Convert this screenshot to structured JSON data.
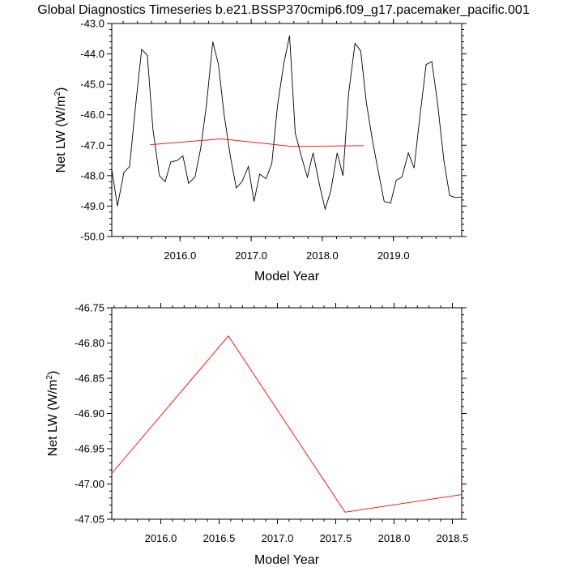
{
  "title": "Global Diagnostics Timeseries b.e21.BSSP370cmip6.f09_g17.pacemaker_pacific.001",
  "chart_data": [
    {
      "type": "line",
      "xlabel": "Model Year",
      "ylabel": "Net LW (W/m",
      "ylabel_sup": "2",
      "ylabel_tail": ")",
      "xlim": [
        2015.04,
        2019.96
      ],
      "ylim": [
        -50.0,
        -43.0
      ],
      "x_ticks": [
        2016.0,
        2017.0,
        2018.0,
        2019.0
      ],
      "x_tick_labels": [
        "2016.0",
        "2017.0",
        "2018.0",
        "2019.0"
      ],
      "y_ticks": [
        -50.0,
        -49.0,
        -48.0,
        -47.0,
        -46.0,
        -45.0,
        -44.0,
        -43.0
      ],
      "y_tick_labels": [
        "-50.0",
        "-49.0",
        "-48.0",
        "-47.0",
        "-46.0",
        "-45.0",
        "-44.0",
        "-43.0"
      ],
      "series": [
        {
          "color": "#000000",
          "x": [
            2015.04,
            2015.12,
            2015.21,
            2015.29,
            2015.37,
            2015.46,
            2015.54,
            2015.62,
            2015.71,
            2015.79,
            2015.87,
            2015.96,
            2016.04,
            2016.12,
            2016.21,
            2016.29,
            2016.37,
            2016.46,
            2016.54,
            2016.62,
            2016.71,
            2016.79,
            2016.87,
            2016.96,
            2017.04,
            2017.12,
            2017.21,
            2017.29,
            2017.37,
            2017.46,
            2017.54,
            2017.62,
            2017.71,
            2017.79,
            2017.87,
            2017.96,
            2018.04,
            2018.12,
            2018.21,
            2018.29,
            2018.37,
            2018.46,
            2018.54,
            2018.62,
            2018.71,
            2018.79,
            2018.87,
            2018.96,
            2019.04,
            2019.12,
            2019.21,
            2019.29,
            2019.37,
            2019.46,
            2019.54,
            2019.62,
            2019.71,
            2019.79,
            2019.87,
            2019.96
          ],
          "values": [
            -47.8,
            -49.0,
            -47.9,
            -47.7,
            -45.8,
            -43.85,
            -44.05,
            -46.5,
            -48.0,
            -48.2,
            -47.55,
            -47.5,
            -47.35,
            -48.25,
            -48.05,
            -47.1,
            -45.7,
            -43.6,
            -44.35,
            -46.0,
            -47.4,
            -48.4,
            -48.2,
            -47.7,
            -48.85,
            -47.95,
            -48.1,
            -47.6,
            -45.7,
            -44.3,
            -43.4,
            -46.6,
            -47.4,
            -48.05,
            -47.25,
            -48.3,
            -49.1,
            -48.5,
            -47.25,
            -48.0,
            -45.3,
            -43.65,
            -43.9,
            -45.6,
            -46.9,
            -47.9,
            -48.85,
            -48.9,
            -48.15,
            -48.05,
            -47.25,
            -47.75,
            -46.1,
            -44.35,
            -44.25,
            -45.6,
            -47.5,
            -48.65,
            -48.72,
            -48.7
          ]
        },
        {
          "color": "#ff0000",
          "x": [
            2015.58,
            2016.58,
            2017.58,
            2018.58
          ],
          "values": [
            -46.985,
            -46.79,
            -47.04,
            -47.015
          ]
        }
      ]
    },
    {
      "type": "line",
      "xlabel": "Model Year",
      "ylabel": "Net LW (W/m",
      "ylabel_sup": "2",
      "ylabel_tail": ")",
      "xlim": [
        2015.58,
        2018.58
      ],
      "ylim": [
        -47.05,
        -46.75
      ],
      "x_ticks": [
        2016.0,
        2016.5,
        2017.0,
        2017.5,
        2018.0,
        2018.5
      ],
      "x_tick_labels": [
        "2016.0",
        "2016.5",
        "2017.0",
        "2017.5",
        "2018.0",
        "2018.5"
      ],
      "y_ticks": [
        -47.05,
        -47.0,
        -46.95,
        -46.9,
        -46.85,
        -46.8,
        -46.75
      ],
      "y_tick_labels": [
        "-47.05",
        "-47.00",
        "-46.95",
        "-46.90",
        "-46.85",
        "-46.80",
        "-46.75"
      ],
      "series": [
        {
          "color": "#ff0000",
          "x": [
            2015.58,
            2016.58,
            2017.58,
            2018.58
          ],
          "values": [
            -46.985,
            -46.79,
            -47.04,
            -47.015
          ]
        }
      ]
    }
  ]
}
